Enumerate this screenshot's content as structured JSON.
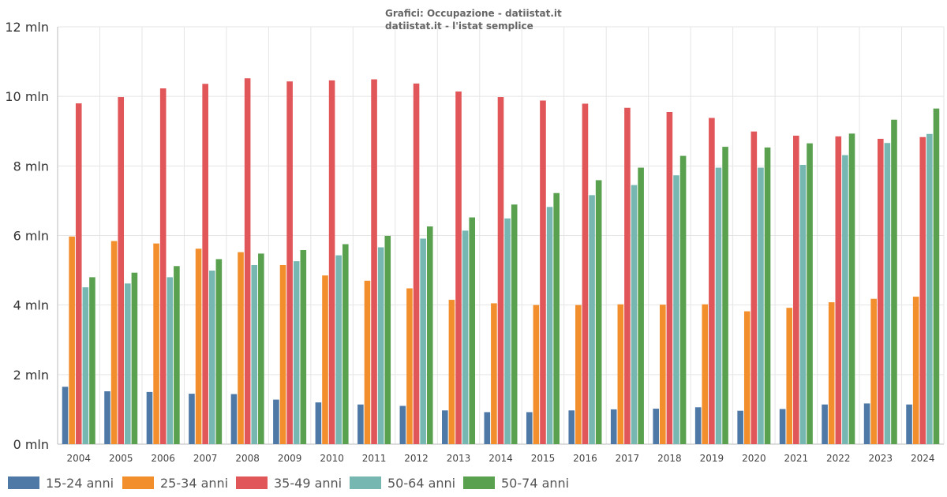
{
  "chart_data": {
    "type": "bar",
    "title": "Grafici: Occupazione - datiistat.it",
    "subtitle": "datiistat.it - l'istat semplice",
    "xlabel": "",
    "ylabel": "",
    "ylim": [
      0,
      12
    ],
    "yticks": [
      {
        "value": 0,
        "label": "0 mln"
      },
      {
        "value": 2,
        "label": "2 mln"
      },
      {
        "value": 4,
        "label": "4 mln"
      },
      {
        "value": 6,
        "label": "6 mln"
      },
      {
        "value": 8,
        "label": "8 mln"
      },
      {
        "value": 10,
        "label": "10 mln"
      },
      {
        "value": 12,
        "label": "12 mln"
      }
    ],
    "grid": true,
    "legend_position": "bottom-left",
    "categories": [
      "2004",
      "2005",
      "2006",
      "2007",
      "2008",
      "2009",
      "2010",
      "2011",
      "2012",
      "2013",
      "2014",
      "2015",
      "2016",
      "2017",
      "2018",
      "2019",
      "2020",
      "2021",
      "2022",
      "2023",
      "2024"
    ],
    "series": [
      {
        "name": "15-24 anni",
        "color": "#4e79a7",
        "values": [
          1.65,
          1.52,
          1.5,
          1.45,
          1.44,
          1.28,
          1.2,
          1.14,
          1.1,
          0.97,
          0.92,
          0.92,
          0.97,
          1.0,
          1.02,
          1.06,
          0.96,
          1.01,
          1.14,
          1.17,
          1.14
        ]
      },
      {
        "name": "25-34 anni",
        "color": "#f28e2b",
        "values": [
          5.97,
          5.84,
          5.77,
          5.62,
          5.52,
          5.15,
          4.85,
          4.7,
          4.48,
          4.15,
          4.05,
          4.0,
          4.0,
          4.02,
          4.01,
          4.02,
          3.82,
          3.92,
          4.08,
          4.18,
          4.24
        ]
      },
      {
        "name": "35-49 anni",
        "color": "#e15759",
        "values": [
          9.8,
          9.98,
          10.23,
          10.36,
          10.52,
          10.43,
          10.46,
          10.49,
          10.37,
          10.14,
          9.98,
          9.88,
          9.79,
          9.67,
          9.55,
          9.38,
          8.99,
          8.87,
          8.85,
          8.78,
          8.83
        ]
      },
      {
        "name": "50-64 anni",
        "color": "#76b7b2",
        "values": [
          4.51,
          4.62,
          4.8,
          4.99,
          5.15,
          5.26,
          5.43,
          5.66,
          5.91,
          6.14,
          6.49,
          6.82,
          7.16,
          7.45,
          7.73,
          7.95,
          7.95,
          8.03,
          8.31,
          8.66,
          8.92
        ]
      },
      {
        "name": "50-74 anni",
        "color": "#59a14f",
        "values": [
          4.8,
          4.93,
          5.12,
          5.32,
          5.48,
          5.58,
          5.75,
          5.99,
          6.26,
          6.52,
          6.89,
          7.22,
          7.59,
          7.95,
          8.29,
          8.55,
          8.53,
          8.65,
          8.93,
          9.33,
          9.65
        ]
      }
    ]
  }
}
